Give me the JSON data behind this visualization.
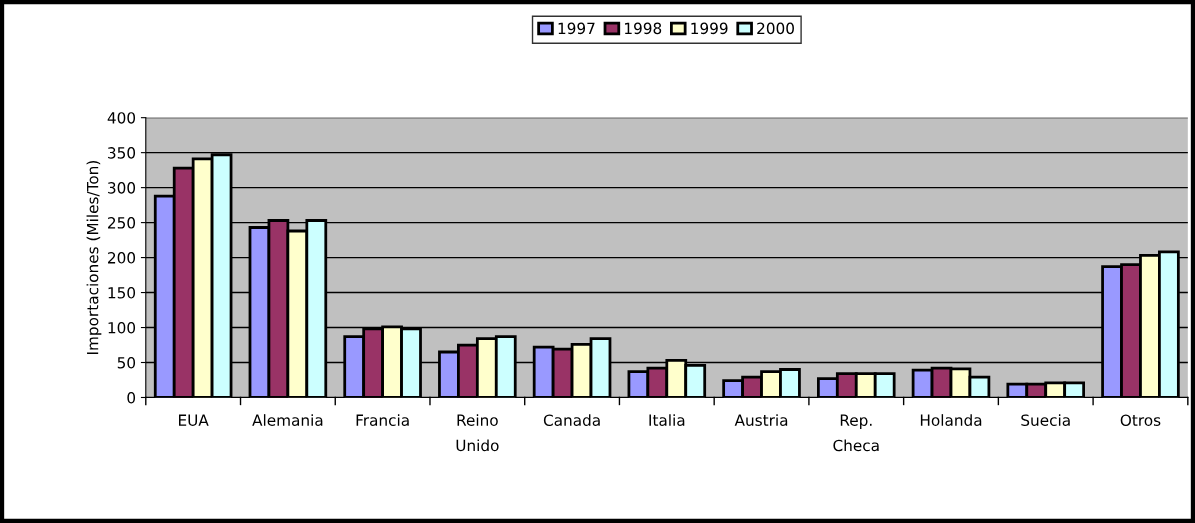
{
  "chart_data": {
    "type": "bar",
    "ylabel": "Importaciones (Miles/Ton)",
    "categories": [
      "EUA",
      "Alemania",
      "Francia",
      "Reino\nUnido",
      "Canada",
      "Italia",
      "Austria",
      "Rep.\nCheca",
      "Holanda",
      "Suecia",
      "Otros"
    ],
    "series": [
      {
        "name": "1997",
        "color": "#9999ff",
        "values": [
          288,
          243,
          87,
          65,
          72,
          37,
          24,
          27,
          39,
          19,
          187
        ]
      },
      {
        "name": "1998",
        "color": "#993366",
        "values": [
          328,
          253,
          98,
          75,
          69,
          42,
          29,
          34,
          42,
          19,
          190
        ]
      },
      {
        "name": "1999",
        "color": "#ffffcc",
        "values": [
          341,
          238,
          101,
          84,
          76,
          53,
          37,
          34,
          41,
          21,
          203
        ]
      },
      {
        "name": "2000",
        "color": "#ccffff",
        "values": [
          347,
          253,
          98,
          87,
          84,
          46,
          40,
          34,
          29,
          21,
          208
        ]
      }
    ],
    "ylim": [
      0,
      400
    ],
    "yticks": [
      0,
      50,
      100,
      150,
      200,
      250,
      300,
      350,
      400
    ],
    "grid": "y",
    "legend": "top"
  }
}
